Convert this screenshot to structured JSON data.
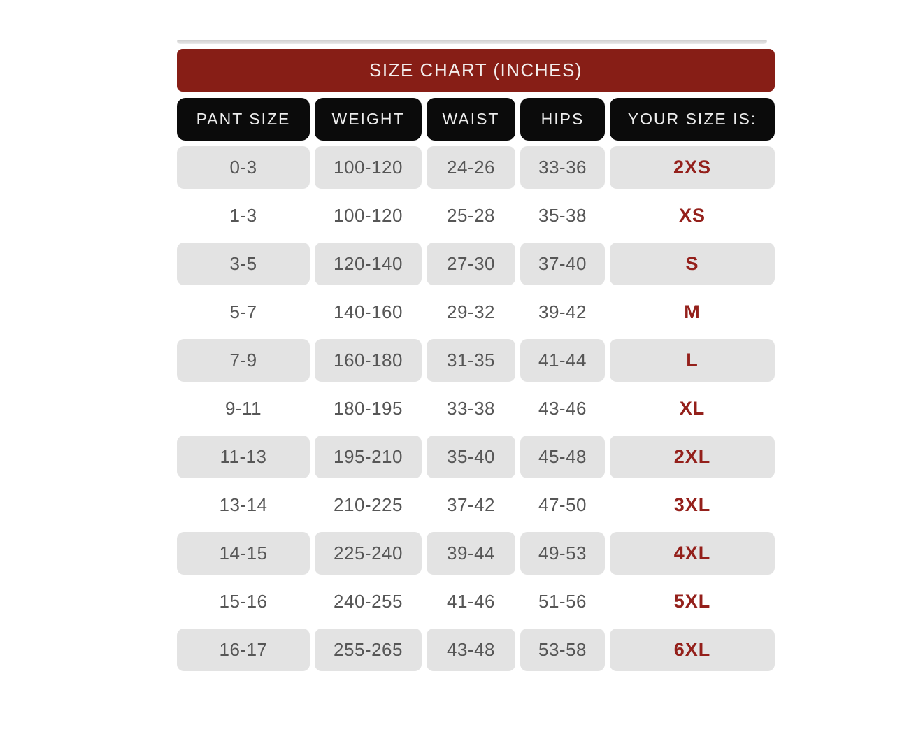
{
  "chart_data": {
    "type": "table",
    "title": "SIZE CHART (INCHES)",
    "columns": [
      "PANT SIZE",
      "WEIGHT",
      "WAIST",
      "HIPS",
      "YOUR SIZE IS:"
    ],
    "rows": [
      [
        "0-3",
        "100-120",
        "24-26",
        "33-36",
        "2XS"
      ],
      [
        "1-3",
        "100-120",
        "25-28",
        "35-38",
        "XS"
      ],
      [
        "3-5",
        "120-140",
        "27-30",
        "37-40",
        "S"
      ],
      [
        "5-7",
        "140-160",
        "29-32",
        "39-42",
        "M"
      ],
      [
        "7-9",
        "160-180",
        "31-35",
        "41-44",
        "L"
      ],
      [
        "9-11",
        "180-195",
        "33-38",
        "43-46",
        "XL"
      ],
      [
        "11-13",
        "195-210",
        "35-40",
        "45-48",
        "2XL"
      ],
      [
        "13-14",
        "210-225",
        "37-42",
        "47-50",
        "3XL"
      ],
      [
        "14-15",
        "225-240",
        "39-44",
        "49-53",
        "4XL"
      ],
      [
        "15-16",
        "240-255",
        "41-46",
        "51-56",
        "5XL"
      ],
      [
        "16-17",
        "255-265",
        "43-48",
        "53-58",
        "6XL"
      ]
    ],
    "layout_hints": {
      "shaded_row_indexes": [
        0,
        2,
        4,
        6,
        8,
        10
      ],
      "units": "inches"
    },
    "colors": {
      "banner_red": "#871E16",
      "header_black": "#0B0B0B",
      "shaded_cell_gray": "#E3E3E3",
      "data_text_gray": "#565656",
      "size_text_red": "#94201B",
      "banner_text": "#F3EDEC",
      "header_text": "#EDEDED",
      "top_edge_gray": "#D0D0D0"
    }
  }
}
